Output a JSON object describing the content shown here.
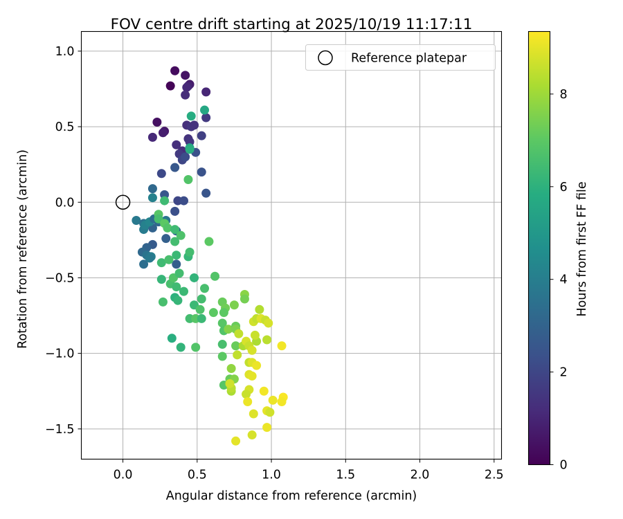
{
  "chart_data": {
    "type": "scatter",
    "title": "FOV centre drift starting at 2025/10/19 11:17:11",
    "xlabel": "Angular distance from reference (arcmin)",
    "ylabel": "Rotation from reference (arcmin)",
    "xlim": [
      -0.28,
      2.55
    ],
    "ylim": [
      -1.7,
      1.13
    ],
    "xticks": [
      0.0,
      0.5,
      1.0,
      1.5,
      2.0,
      2.5
    ],
    "xtick_labels": [
      "0.0",
      "0.5",
      "1.0",
      "1.5",
      "2.0",
      "2.5"
    ],
    "yticks": [
      1.0,
      0.5,
      0.0,
      -0.5,
      -1.0,
      -1.5
    ],
    "ytick_labels": [
      "1.0",
      "0.5",
      "0.0",
      "−0.5",
      "−1.0",
      "−1.5"
    ],
    "grid": true,
    "legend": {
      "position": "top-right",
      "entries": [
        "Reference platepar"
      ]
    },
    "reference_point": {
      "x": 0.0,
      "y": 0.0
    },
    "colorbar": {
      "label": "Hours from first FF file",
      "colormap": "viridis",
      "range": [
        0,
        9.35
      ],
      "ticks": [
        0,
        2,
        4,
        6,
        8
      ],
      "tick_labels": [
        "0",
        "2",
        "4",
        "6",
        "8"
      ]
    },
    "points": [
      [
        0.32,
        0.77,
        0.1
      ],
      [
        0.35,
        0.87,
        0.3
      ],
      [
        0.42,
        0.84,
        0.5
      ],
      [
        0.45,
        0.78,
        0.7
      ],
      [
        0.44,
        0.77,
        0.9
      ],
      [
        0.43,
        0.76,
        1.1
      ],
      [
        0.42,
        0.71,
        1.2
      ],
      [
        0.56,
        0.73,
        1.0
      ],
      [
        0.23,
        0.53,
        0.4
      ],
      [
        0.28,
        0.47,
        0.6
      ],
      [
        0.27,
        0.46,
        0.8
      ],
      [
        0.2,
        0.43,
        1.1
      ],
      [
        0.43,
        0.51,
        1.3
      ],
      [
        0.46,
        0.5,
        1.5
      ],
      [
        0.48,
        0.51,
        1.4
      ],
      [
        0.56,
        0.56,
        1.6
      ],
      [
        0.44,
        0.42,
        1.4
      ],
      [
        0.45,
        0.4,
        1.5
      ],
      [
        0.53,
        0.44,
        1.8
      ],
      [
        0.36,
        0.38,
        1.3
      ],
      [
        0.4,
        0.34,
        1.2
      ],
      [
        0.38,
        0.32,
        1.6
      ],
      [
        0.4,
        0.28,
        2.0
      ],
      [
        0.42,
        0.3,
        2.2
      ],
      [
        0.49,
        0.33,
        2.3
      ],
      [
        0.35,
        0.23,
        2.6
      ],
      [
        0.26,
        0.19,
        2.1
      ],
      [
        0.53,
        0.2,
        2.4
      ],
      [
        0.56,
        0.06,
        2.5
      ],
      [
        0.37,
        0.01,
        2.0
      ],
      [
        0.41,
        0.01,
        2.2
      ],
      [
        0.35,
        -0.06,
        2.3
      ],
      [
        0.28,
        0.05,
        2.6
      ],
      [
        0.2,
        0.09,
        3.2
      ],
      [
        0.2,
        0.03,
        4.1
      ],
      [
        0.09,
        -0.12,
        3.8
      ],
      [
        0.14,
        -0.14,
        3.5
      ],
      [
        0.14,
        -0.18,
        3.9
      ],
      [
        0.2,
        -0.17,
        3.0
      ],
      [
        0.15,
        -0.15,
        4.1
      ],
      [
        0.18,
        -0.13,
        4.3
      ],
      [
        0.21,
        -0.11,
        3.4
      ],
      [
        0.24,
        -0.13,
        3.2
      ],
      [
        0.29,
        -0.12,
        3.7
      ],
      [
        0.29,
        -0.24,
        2.9
      ],
      [
        0.36,
        -0.19,
        3.1
      ],
      [
        0.2,
        -0.28,
        2.7
      ],
      [
        0.16,
        -0.3,
        3.0
      ],
      [
        0.13,
        -0.33,
        3.2
      ],
      [
        0.16,
        -0.35,
        3.6
      ],
      [
        0.19,
        -0.36,
        4.0
      ],
      [
        0.14,
        -0.41,
        3.4
      ],
      [
        0.36,
        -0.41,
        2.8
      ],
      [
        0.18,
        -0.37,
        3.8
      ],
      [
        0.28,
        0.01,
        6.4
      ],
      [
        0.44,
        0.15,
        6.8
      ],
      [
        0.55,
        0.61,
        5.6
      ],
      [
        0.46,
        0.57,
        5.8
      ],
      [
        0.45,
        0.36,
        5.5
      ],
      [
        0.45,
        0.35,
        5.9
      ],
      [
        0.24,
        -0.08,
        6.9
      ],
      [
        0.24,
        -0.11,
        6.6
      ],
      [
        0.28,
        -0.14,
        7.0
      ],
      [
        0.3,
        -0.17,
        6.8
      ],
      [
        0.35,
        -0.18,
        6.4
      ],
      [
        0.39,
        -0.22,
        6.7
      ],
      [
        0.35,
        -0.26,
        6.5
      ],
      [
        0.36,
        -0.35,
        6.3
      ],
      [
        0.26,
        -0.4,
        6.4
      ],
      [
        0.31,
        -0.38,
        6.6
      ],
      [
        0.44,
        -0.36,
        6.2
      ],
      [
        0.45,
        -0.33,
        6.5
      ],
      [
        0.58,
        -0.26,
        7.0
      ],
      [
        0.62,
        -0.49,
        6.8
      ],
      [
        0.26,
        -0.51,
        6.2
      ],
      [
        0.32,
        -0.54,
        6.6
      ],
      [
        0.34,
        -0.5,
        6.8
      ],
      [
        0.38,
        -0.47,
        6.5
      ],
      [
        0.36,
        -0.56,
        6.4
      ],
      [
        0.41,
        -0.59,
        6.3
      ],
      [
        0.48,
        -0.5,
        6.1
      ],
      [
        0.55,
        -0.57,
        6.6
      ],
      [
        0.53,
        -0.64,
        6.5
      ],
      [
        0.35,
        -0.63,
        6.0
      ],
      [
        0.37,
        -0.65,
        6.2
      ],
      [
        0.27,
        -0.66,
        6.6
      ],
      [
        0.48,
        -0.68,
        6.3
      ],
      [
        0.52,
        -0.71,
        6.7
      ],
      [
        0.45,
        -0.77,
        6.5
      ],
      [
        0.49,
        -0.77,
        6.9
      ],
      [
        0.53,
        -0.77,
        6.3
      ],
      [
        0.33,
        -0.9,
        5.9
      ],
      [
        0.39,
        -0.96,
        6.1
      ],
      [
        0.49,
        -0.96,
        6.8
      ],
      [
        0.67,
        -0.66,
        7.2
      ],
      [
        0.61,
        -0.73,
        7.0
      ],
      [
        0.69,
        -0.7,
        7.3
      ],
      [
        0.68,
        -0.73,
        7.0
      ],
      [
        0.75,
        -0.68,
        7.5
      ],
      [
        0.82,
        -0.61,
        7.7
      ],
      [
        0.82,
        -0.64,
        7.4
      ],
      [
        0.67,
        -0.8,
        6.9
      ],
      [
        0.68,
        -0.85,
        6.8
      ],
      [
        0.71,
        -0.84,
        7.6
      ],
      [
        0.76,
        -0.82,
        7.2
      ],
      [
        0.76,
        -0.84,
        7.5
      ],
      [
        0.67,
        -0.94,
        6.6
      ],
      [
        0.76,
        -0.95,
        7.2
      ],
      [
        0.67,
        -1.02,
        7.0
      ],
      [
        0.73,
        -1.1,
        7.8
      ],
      [
        0.72,
        -1.17,
        7.2
      ],
      [
        0.75,
        -1.17,
        7.6
      ],
      [
        0.68,
        -1.21,
        6.9
      ],
      [
        0.73,
        -1.25,
        8.2
      ],
      [
        0.73,
        -1.23,
        8.4
      ],
      [
        0.72,
        -1.2,
        8.7
      ],
      [
        0.78,
        -0.87,
        8.5
      ],
      [
        0.81,
        -0.95,
        8.2
      ],
      [
        0.83,
        -0.92,
        8.8
      ],
      [
        0.85,
        -0.95,
        8.6
      ],
      [
        0.87,
        -0.98,
        8.8
      ],
      [
        0.85,
        -1.06,
        8.5
      ],
      [
        0.87,
        -1.06,
        8.9
      ],
      [
        0.9,
        -1.08,
        9.1
      ],
      [
        0.88,
        -0.79,
        8.7
      ],
      [
        0.9,
        -0.77,
        8.5
      ],
      [
        0.92,
        -0.71,
        8.3
      ],
      [
        0.93,
        -0.77,
        8.9
      ],
      [
        0.96,
        -0.78,
        8.6
      ],
      [
        0.98,
        -0.8,
        8.8
      ],
      [
        0.97,
        -0.91,
        8.4
      ],
      [
        0.9,
        -0.92,
        8.2
      ],
      [
        0.89,
        -0.88,
        8.6
      ],
      [
        0.85,
        -1.14,
        8.9
      ],
      [
        0.87,
        -1.15,
        9.0
      ],
      [
        0.85,
        -1.24,
        8.8
      ],
      [
        0.83,
        -1.27,
        8.6
      ],
      [
        0.84,
        -1.32,
        9.1
      ],
      [
        0.88,
        -1.4,
        8.9
      ],
      [
        0.95,
        -1.25,
        9.2
      ],
      [
        0.97,
        -1.38,
        9.0
      ],
      [
        0.99,
        -1.39,
        8.7
      ],
      [
        1.01,
        -1.31,
        9.1
      ],
      [
        1.08,
        -1.29,
        9.3
      ],
      [
        1.07,
        -1.32,
        9.2
      ],
      [
        0.97,
        -1.49,
        9.1
      ],
      [
        0.87,
        -1.54,
        8.8
      ],
      [
        0.76,
        -1.58,
        9.0
      ],
      [
        1.07,
        -0.95,
        9.2
      ],
      [
        0.77,
        -1.01,
        8.5
      ]
    ]
  }
}
